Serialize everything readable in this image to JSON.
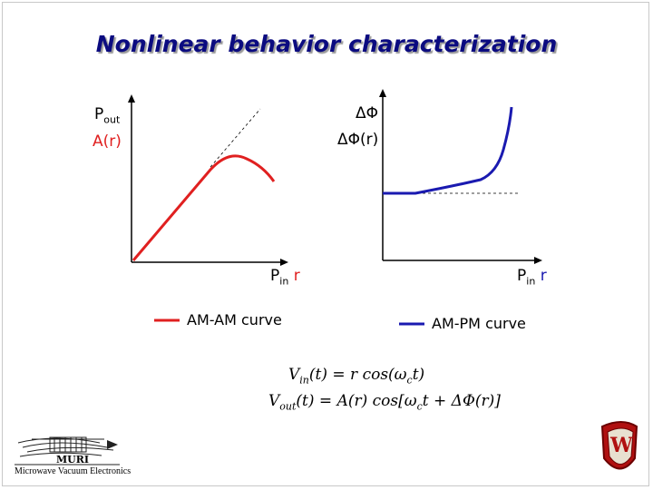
{
  "slide": {
    "title": "Nonlinear behavior characterization"
  },
  "left_plot": {
    "y_label_main": "P",
    "y_label_sub": "out",
    "y_label_fn": "A(r)",
    "x_label_main": "P",
    "x_label_sub": "in",
    "x_label_var": "r"
  },
  "right_plot": {
    "y_label_main": "ΔΦ",
    "y_label_fn": "ΔΦ(r)",
    "x_label_main": "P",
    "x_label_sub": "in",
    "x_label_var": "r"
  },
  "legend": {
    "am_am": "AM-AM curve",
    "am_pm": "AM-PM curve",
    "am_am_color": "#e02020",
    "am_pm_color": "#1a1ab0"
  },
  "equations": {
    "vin_lhs": "V",
    "vin_sub": "in",
    "vin_rhs": "(t) = r cos(ω",
    "vin_rhs2": "t)",
    "vout_lhs": "V",
    "vout_sub": "out",
    "vout_rhs": "(t) = A(r) cos[ω",
    "vout_rhs2": "t + ΔΦ(r)]",
    "omega_sub": "c"
  },
  "logos": {
    "muri_text_1": "MURI",
    "muri_text_2": "Microwave Vacuum Electronics",
    "crest_letter": "W"
  }
}
